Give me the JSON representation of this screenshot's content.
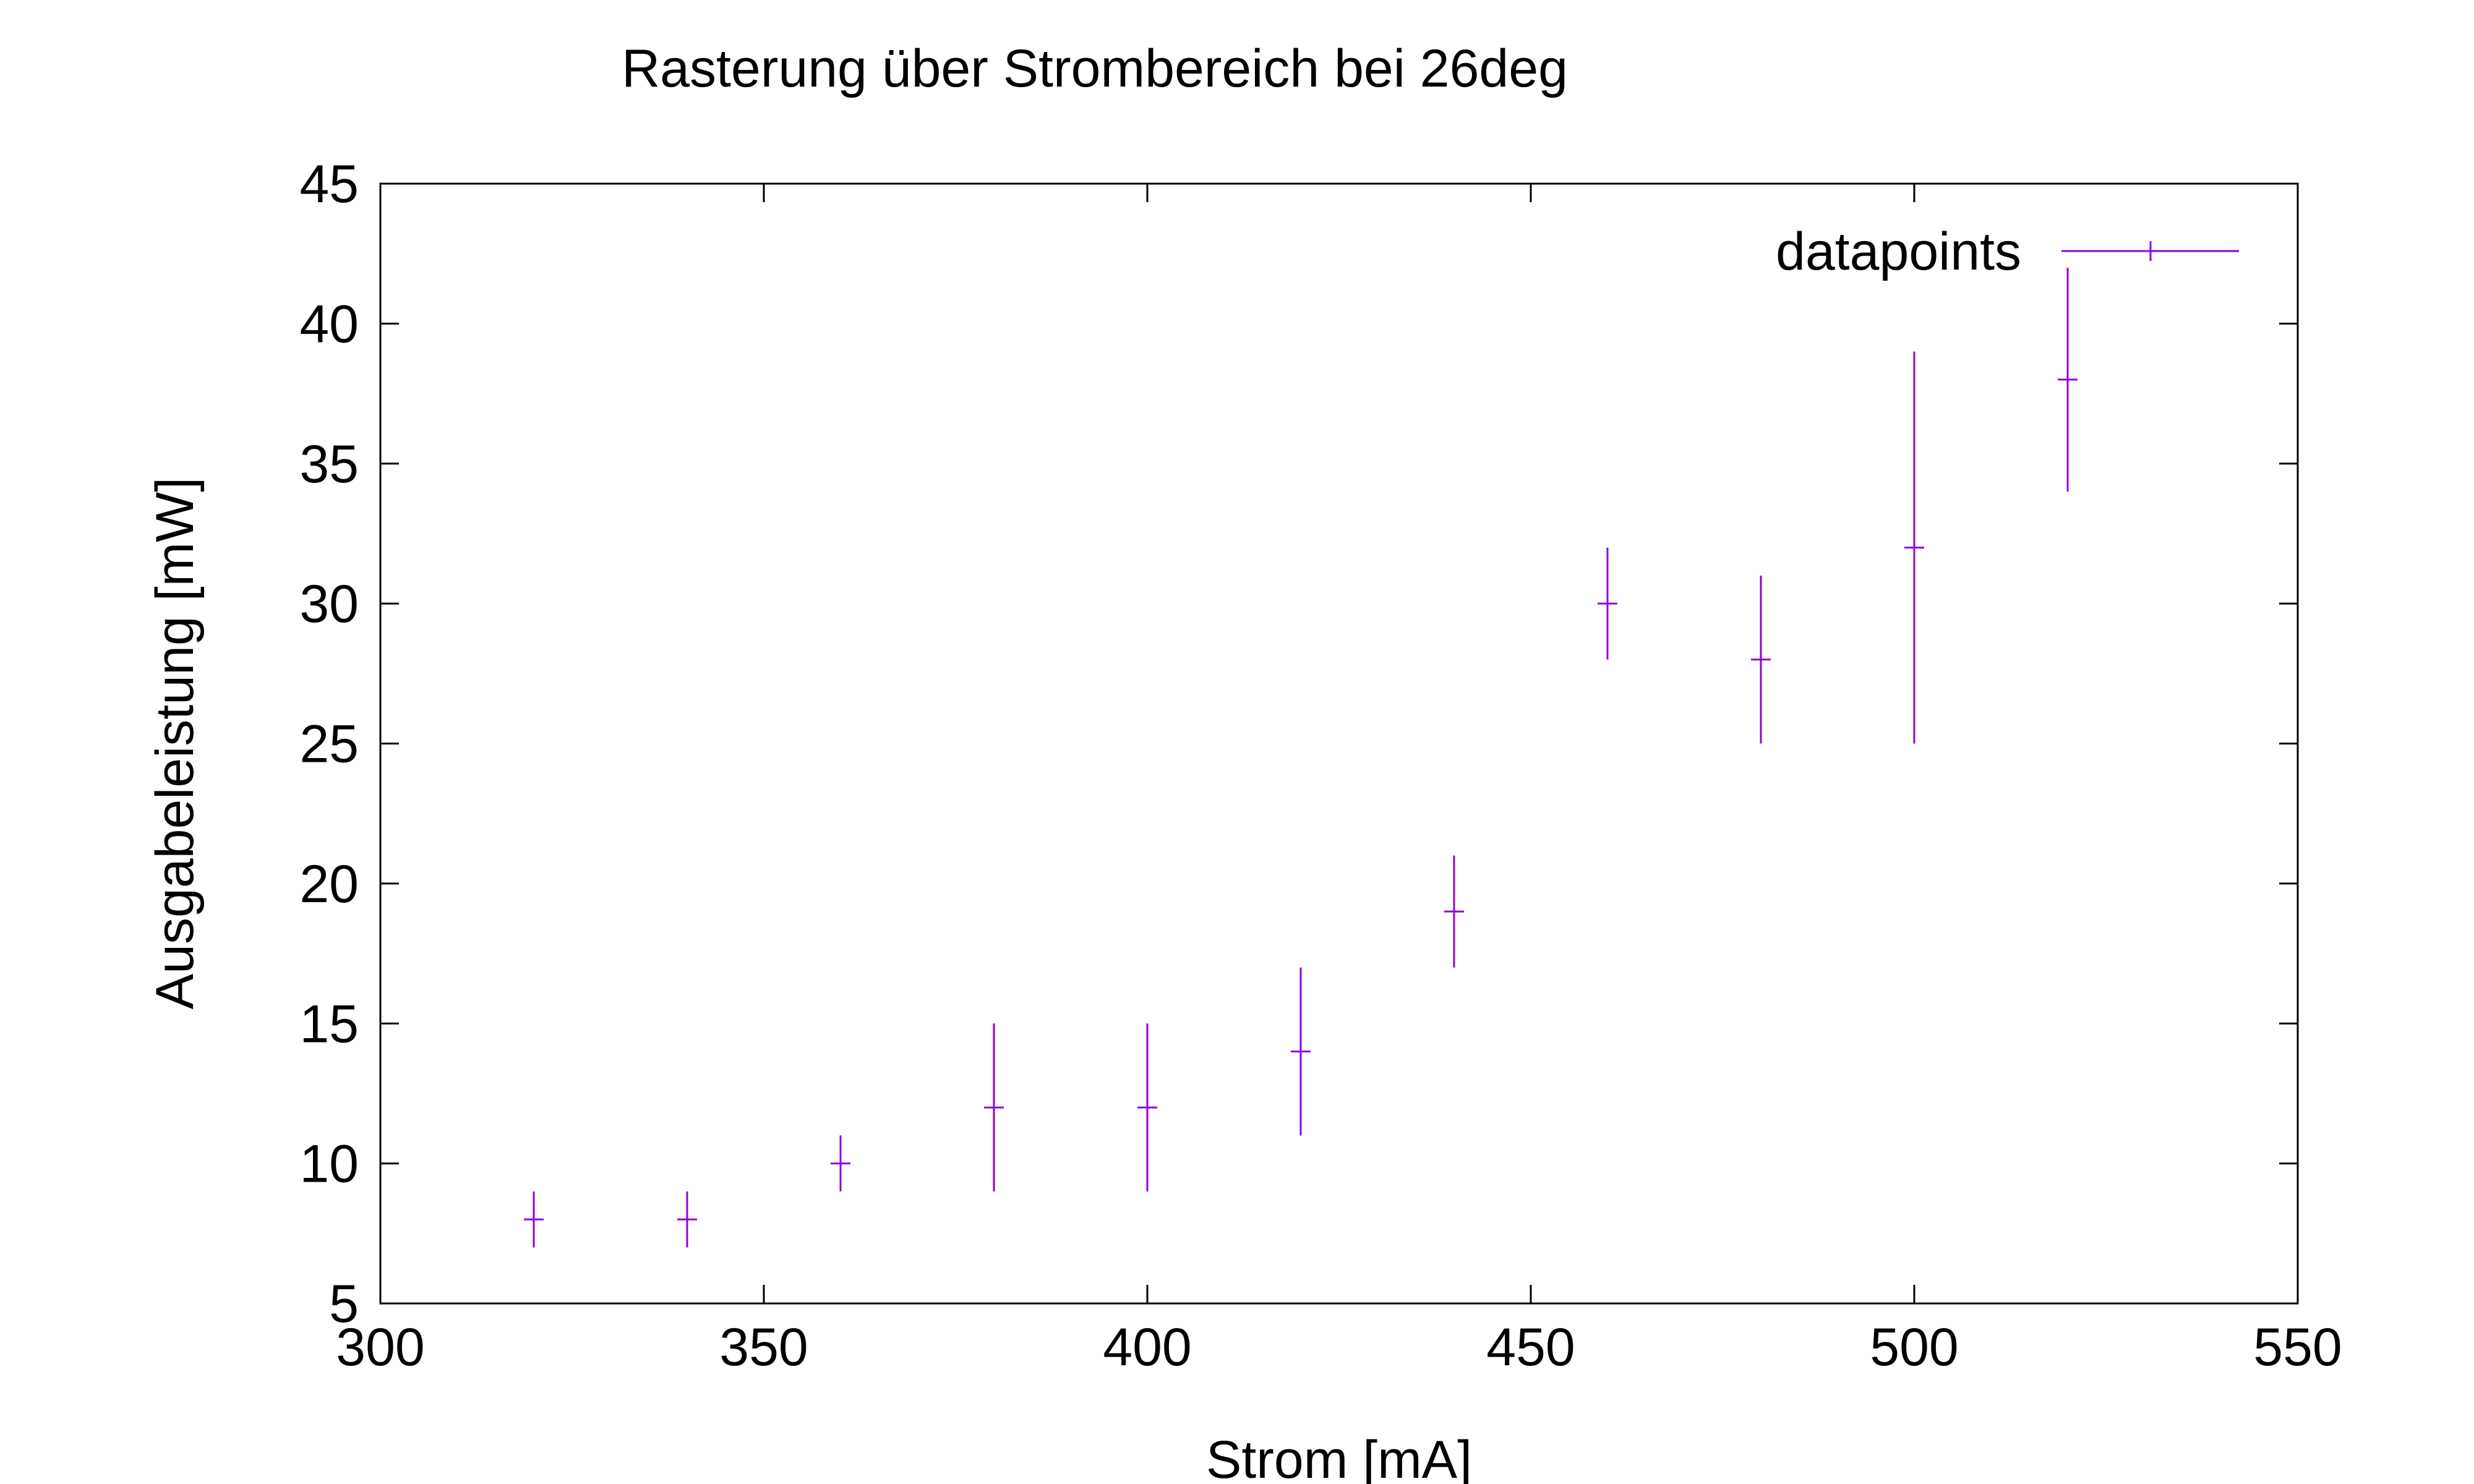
{
  "chart_data": {
    "type": "scatter",
    "title": "Rasterung über Strombereich bei 26deg",
    "xlabel": "Strom [mA]",
    "ylabel": "Ausgabeleistung [mW]",
    "xlim": [
      300,
      550
    ],
    "ylim": [
      5,
      45
    ],
    "x_ticks": [
      300,
      350,
      400,
      450,
      500,
      550
    ],
    "y_ticks": [
      5,
      10,
      15,
      20,
      25,
      30,
      35,
      40,
      45
    ],
    "grid": false,
    "legend_position": "top-right",
    "series": [
      {
        "name": "datapoints",
        "color": "#9400d3",
        "marker": "plus",
        "error_bars": "y",
        "points": [
          {
            "x": 320,
            "y": 8,
            "ylow": 7,
            "yhigh": 9
          },
          {
            "x": 340,
            "y": 8,
            "ylow": 7,
            "yhigh": 9
          },
          {
            "x": 360,
            "y": 10,
            "ylow": 9,
            "yhigh": 11
          },
          {
            "x": 380,
            "y": 12,
            "ylow": 9,
            "yhigh": 15
          },
          {
            "x": 400,
            "y": 12,
            "ylow": 9,
            "yhigh": 15
          },
          {
            "x": 420,
            "y": 14,
            "ylow": 11,
            "yhigh": 17
          },
          {
            "x": 440,
            "y": 19,
            "ylow": 17,
            "yhigh": 21
          },
          {
            "x": 460,
            "y": 30,
            "ylow": 28,
            "yhigh": 32
          },
          {
            "x": 480,
            "y": 28,
            "ylow": 25,
            "yhigh": 31
          },
          {
            "x": 500,
            "y": 32,
            "ylow": 25,
            "yhigh": 39
          },
          {
            "x": 520,
            "y": 38,
            "ylow": 34,
            "yhigh": 42
          }
        ]
      }
    ]
  }
}
